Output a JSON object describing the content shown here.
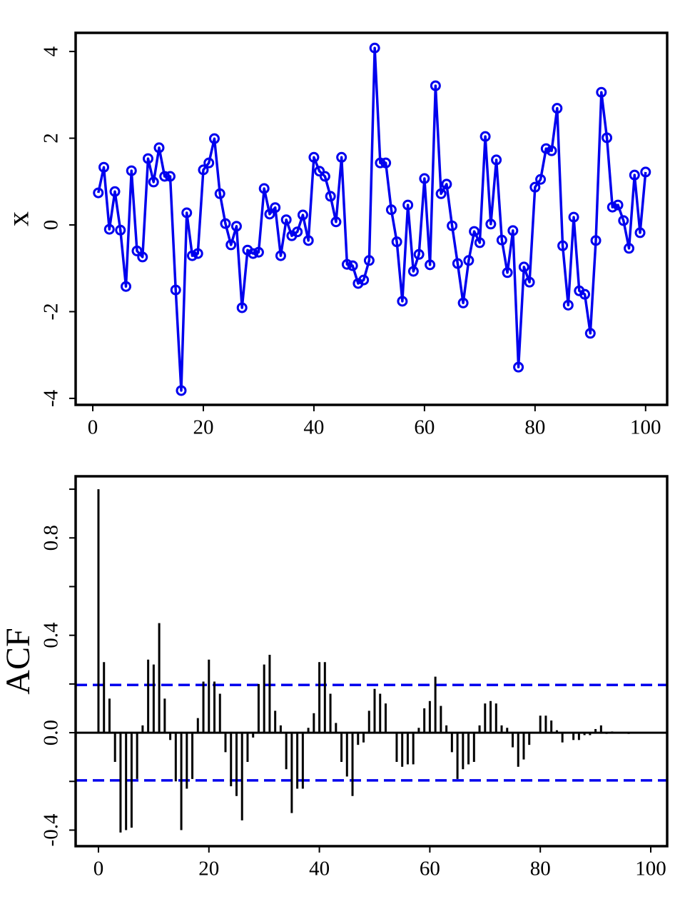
{
  "chart_data": [
    {
      "type": "line",
      "ylabel": "x",
      "color": "#0000ee",
      "marker": "circle",
      "x": [
        1,
        2,
        3,
        4,
        5,
        6,
        7,
        8,
        9,
        10,
        11,
        12,
        13,
        14,
        15,
        16,
        17,
        18,
        19,
        20,
        21,
        22,
        23,
        24,
        25,
        26,
        27,
        28,
        29,
        30,
        31,
        32,
        33,
        34,
        35,
        36,
        37,
        38,
        39,
        40,
        41,
        42,
        43,
        44,
        45,
        46,
        47,
        48,
        49,
        50,
        51,
        52,
        53,
        54,
        55,
        56,
        57,
        58,
        59,
        60,
        61,
        62,
        63,
        64,
        65,
        66,
        67,
        68,
        69,
        70,
        71,
        72,
        73,
        74,
        75,
        76,
        77,
        78,
        79,
        80,
        81,
        82,
        83,
        84,
        85,
        86,
        87,
        88,
        89,
        90,
        91,
        92,
        93,
        94,
        95,
        96,
        97,
        98,
        99,
        100
      ],
      "values": [
        0.74,
        1.33,
        -0.1,
        0.77,
        -0.12,
        -1.42,
        1.25,
        -0.6,
        -0.74,
        1.53,
        0.99,
        1.78,
        1.12,
        1.12,
        -1.5,
        -3.82,
        0.28,
        -0.71,
        -0.66,
        1.27,
        1.43,
        1.99,
        0.72,
        0.03,
        -0.46,
        -0.03,
        -1.91,
        -0.58,
        -0.66,
        -0.63,
        0.84,
        0.25,
        0.4,
        -0.71,
        0.12,
        -0.25,
        -0.16,
        0.23,
        -0.36,
        1.56,
        1.24,
        1.12,
        0.66,
        0.07,
        1.56,
        -0.91,
        -0.94,
        -1.35,
        -1.27,
        -0.82,
        4.08,
        1.43,
        1.43,
        0.35,
        -0.39,
        -1.76,
        0.46,
        -1.07,
        -0.68,
        1.07,
        -0.92,
        3.21,
        0.72,
        0.94,
        -0.02,
        -0.89,
        -1.8,
        -0.82,
        -0.15,
        -0.41,
        2.04,
        0.02,
        1.5,
        -0.35,
        -1.1,
        -0.13,
        -3.28,
        -0.97,
        -1.32,
        0.87,
        1.05,
        1.76,
        1.71,
        2.69,
        -0.48,
        -1.85,
        0.18,
        -1.52,
        -1.6,
        -2.5,
        -0.36,
        3.06,
        2.01,
        0.41,
        0.46,
        0.1,
        -0.54,
        1.15,
        -0.18,
        1.22
      ],
      "xlim": [
        -3.1,
        103.9
      ],
      "ylim": [
        -4.15,
        4.43
      ],
      "xticks": [
        0,
        20,
        40,
        60,
        80,
        100
      ],
      "yticks": [
        -4,
        -2,
        0,
        2,
        4
      ]
    },
    {
      "type": "bar",
      "ylabel": "ACF",
      "color": "#000000",
      "x": [
        0,
        1,
        2,
        3,
        4,
        5,
        6,
        7,
        8,
        9,
        10,
        11,
        12,
        13,
        14,
        15,
        16,
        17,
        18,
        19,
        20,
        21,
        22,
        23,
        24,
        25,
        26,
        27,
        28,
        29,
        30,
        31,
        32,
        33,
        34,
        35,
        36,
        37,
        38,
        39,
        40,
        41,
        42,
        43,
        44,
        45,
        46,
        47,
        48,
        49,
        50,
        51,
        52,
        53,
        54,
        55,
        56,
        57,
        58,
        59,
        60,
        61,
        62,
        63,
        64,
        65,
        66,
        67,
        68,
        69,
        70,
        71,
        72,
        73,
        74,
        75,
        76,
        77,
        78,
        79,
        80,
        81,
        82,
        83,
        84,
        85,
        86,
        87,
        88,
        89,
        90,
        91,
        92,
        93,
        94,
        95,
        96,
        97,
        98,
        99
      ],
      "values": [
        1.0,
        0.29,
        0.14,
        -0.12,
        -0.41,
        -0.4,
        -0.39,
        -0.19,
        0.03,
        0.3,
        0.28,
        0.45,
        0.14,
        -0.03,
        -0.2,
        -0.4,
        -0.23,
        -0.19,
        0.06,
        0.21,
        0.3,
        0.21,
        0.16,
        -0.08,
        -0.22,
        -0.26,
        -0.36,
        -0.12,
        -0.02,
        0.2,
        0.28,
        0.32,
        0.09,
        0.03,
        -0.15,
        -0.33,
        -0.23,
        -0.23,
        0.02,
        0.08,
        0.29,
        0.29,
        0.16,
        0.04,
        -0.12,
        -0.18,
        -0.26,
        -0.05,
        -0.04,
        0.09,
        0.18,
        0.16,
        0.12,
        0.0,
        -0.12,
        -0.14,
        -0.13,
        -0.13,
        0.02,
        0.1,
        0.13,
        0.23,
        0.11,
        0.03,
        -0.08,
        -0.19,
        -0.15,
        -0.13,
        -0.12,
        0.03,
        0.12,
        0.13,
        0.12,
        0.03,
        0.02,
        -0.06,
        -0.14,
        -0.11,
        -0.05,
        0.0,
        0.07,
        0.07,
        0.05,
        0.01,
        -0.04,
        0.0,
        -0.03,
        -0.03,
        -0.01,
        -0.01,
        0.015,
        0.03,
        -0.005,
        0.005,
        -0.003,
        0.003,
        -0.005,
        0.001,
        -0.001,
        0.0
      ],
      "conf_limits": [
        0.196,
        -0.196
      ],
      "conf_color": "#0000ee",
      "xlim": [
        -4.13,
        102.97
      ],
      "ylim": [
        -0.466,
        1.053
      ],
      "xticks": [
        0,
        20,
        40,
        60,
        80,
        100
      ],
      "yticks": [
        {
          "value": -0.4,
          "label": "-0.4"
        },
        -0.2,
        {
          "value": 0,
          "label": "0.0"
        },
        0.2,
        0.4,
        0.6,
        0.8,
        1.0
      ],
      "ytick_labels_every": 2
    }
  ]
}
